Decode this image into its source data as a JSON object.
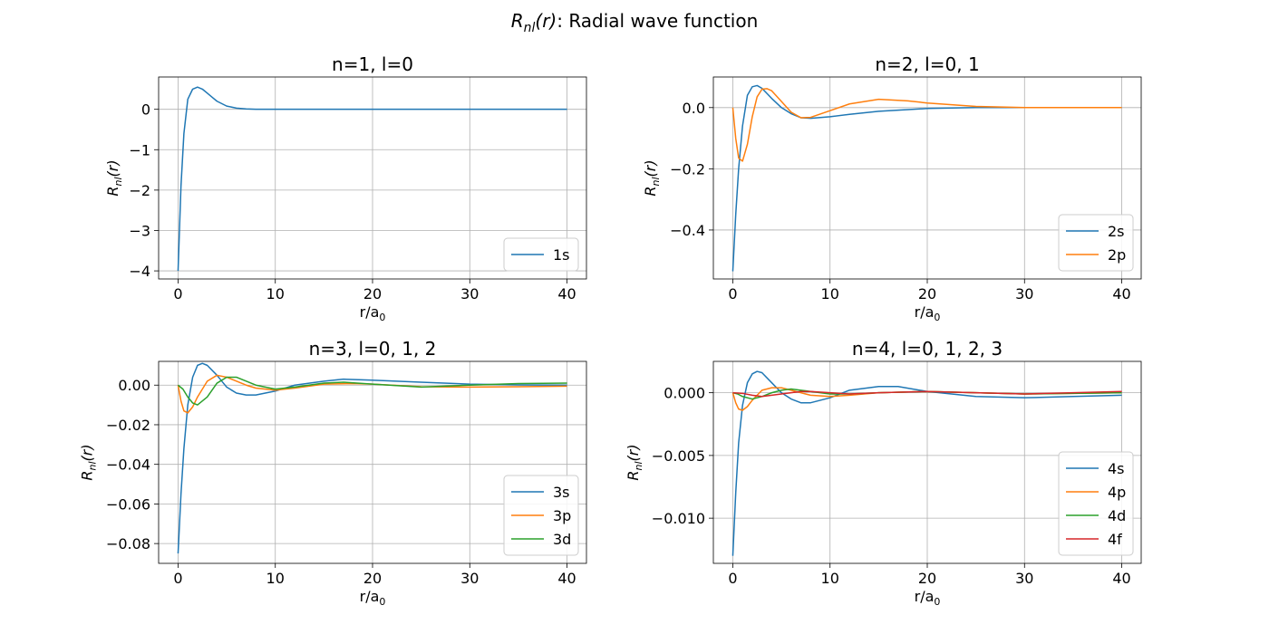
{
  "figure": {
    "suptitle_symbol": "R",
    "suptitle_sub": "nl",
    "suptitle_arg": "(r)",
    "suptitle_text": ": Radial wave function"
  },
  "colors": {
    "s": "#1f77b4",
    "p": "#ff7f0e",
    "d": "#2ca02c",
    "f": "#d62728",
    "grid": "#b0b0b0"
  },
  "chart_data": [
    {
      "type": "line",
      "title": "n=1, l=0",
      "xlabel": "r/a0",
      "ylabel": "Rnl(r)",
      "xlim": [
        -2,
        42
      ],
      "ylim": [
        -4.2,
        0.8
      ],
      "xticks": [
        0,
        10,
        20,
        30,
        40
      ],
      "xtick_labels": [
        "0",
        "10",
        "20",
        "30",
        "40"
      ],
      "yticks": [
        0,
        -1,
        -2,
        -3,
        -4
      ],
      "ytick_labels": [
        "0",
        "−1",
        "−2",
        "−3",
        "−4"
      ],
      "grid": true,
      "legend_position": "lower-right",
      "series": [
        {
          "name": "1s",
          "color": "#1f77b4",
          "x": [
            0,
            0.3,
            0.6,
            1,
            1.5,
            2,
            2.5,
            3,
            3.5,
            4,
            5,
            6,
            7,
            8,
            10,
            15,
            20,
            30,
            40
          ],
          "y": [
            -4.0,
            -1.9,
            -0.6,
            0.25,
            0.5,
            0.55,
            0.5,
            0.4,
            0.3,
            0.2,
            0.08,
            0.03,
            0.01,
            0.0,
            0.0,
            0.0,
            0.0,
            0.0,
            0.0
          ]
        }
      ]
    },
    {
      "type": "line",
      "title": "n=2, l=0, 1",
      "xlabel": "r/a0",
      "ylabel": "Rnl(r)",
      "xlim": [
        -2,
        42
      ],
      "ylim": [
        -0.56,
        0.1
      ],
      "xticks": [
        0,
        10,
        20,
        30,
        40
      ],
      "xtick_labels": [
        "0",
        "10",
        "20",
        "30",
        "40"
      ],
      "yticks": [
        0.0,
        -0.2,
        -0.4
      ],
      "ytick_labels": [
        "0.0",
        "−0.2",
        "−0.4"
      ],
      "grid": true,
      "legend_position": "lower-right",
      "series": [
        {
          "name": "2s",
          "color": "#1f77b4",
          "x": [
            0,
            0.3,
            0.6,
            1,
            1.5,
            2,
            2.5,
            3,
            4,
            5,
            6,
            7,
            8,
            10,
            12,
            15,
            20,
            25,
            30,
            40
          ],
          "y": [
            -0.535,
            -0.35,
            -0.2,
            -0.06,
            0.04,
            0.068,
            0.072,
            0.063,
            0.03,
            0.0,
            -0.02,
            -0.033,
            -0.035,
            -0.03,
            -0.022,
            -0.012,
            -0.003,
            0.0,
            0.0,
            0.0
          ]
        },
        {
          "name": "2p",
          "color": "#ff7f0e",
          "x": [
            0,
            0.3,
            0.6,
            1,
            1.5,
            2,
            2.5,
            3,
            3.5,
            4,
            5,
            6,
            7,
            8,
            10,
            12,
            15,
            18,
            20,
            25,
            30,
            40
          ],
          "y": [
            0.0,
            -0.1,
            -0.165,
            -0.175,
            -0.12,
            -0.03,
            0.035,
            0.06,
            0.062,
            0.055,
            0.02,
            -0.015,
            -0.033,
            -0.032,
            -0.01,
            0.012,
            0.027,
            0.022,
            0.015,
            0.004,
            0.0,
            0.0
          ]
        }
      ]
    },
    {
      "type": "line",
      "title": "n=3, l=0, 1, 2",
      "xlabel": "r/a0",
      "ylabel": "Rnl(r)",
      "xlim": [
        -2,
        42
      ],
      "ylim": [
        -0.09,
        0.012
      ],
      "xticks": [
        0,
        10,
        20,
        30,
        40
      ],
      "xtick_labels": [
        "0",
        "10",
        "20",
        "30",
        "40"
      ],
      "yticks": [
        0.0,
        -0.02,
        -0.04,
        -0.06,
        -0.08
      ],
      "ytick_labels": [
        "0.00",
        "−0.02",
        "−0.04",
        "−0.06",
        "−0.08"
      ],
      "grid": true,
      "legend_position": "lower-right",
      "series": [
        {
          "name": "3s",
          "color": "#1f77b4",
          "x": [
            0,
            0.3,
            0.6,
            1,
            1.5,
            2,
            2.5,
            3,
            4,
            5,
            6,
            7,
            8,
            10,
            12,
            15,
            17,
            20,
            25,
            30,
            35,
            40
          ],
          "y": [
            -0.085,
            -0.055,
            -0.032,
            -0.01,
            0.004,
            0.01,
            0.011,
            0.01,
            0.005,
            -0.001,
            -0.004,
            -0.005,
            -0.005,
            -0.003,
            0.0,
            0.002,
            0.003,
            0.0025,
            0.0015,
            0.0005,
            0.0001,
            0.0
          ]
        },
        {
          "name": "3p",
          "color": "#ff7f0e",
          "x": [
            0,
            0.3,
            0.6,
            1,
            1.5,
            2,
            3,
            4,
            5,
            6,
            7,
            8,
            10,
            12,
            15,
            18,
            20,
            25,
            30,
            35,
            40
          ],
          "y": [
            0.0,
            -0.008,
            -0.013,
            -0.014,
            -0.011,
            -0.006,
            0.002,
            0.005,
            0.004,
            0.002,
            0.0,
            -0.0015,
            -0.0025,
            -0.0015,
            0.0005,
            0.0008,
            0.0005,
            -0.0008,
            -0.001,
            -0.0008,
            -0.0005
          ]
        },
        {
          "name": "3d",
          "color": "#2ca02c",
          "x": [
            0,
            0.5,
            1,
            1.5,
            2,
            3,
            4,
            5,
            6,
            7,
            8,
            10,
            12,
            15,
            17,
            20,
            25,
            30,
            35,
            40
          ],
          "y": [
            0.0,
            -0.002,
            -0.006,
            -0.009,
            -0.01,
            -0.006,
            0.001,
            0.004,
            0.004,
            0.002,
            0.0,
            -0.002,
            -0.001,
            0.001,
            0.0015,
            0.0005,
            -0.001,
            0.0,
            0.0008,
            0.001
          ]
        }
      ]
    },
    {
      "type": "line",
      "title": "n=4, l=0, 1, 2, 3",
      "xlabel": "r/a0",
      "ylabel": "Rnl(r)",
      "xlim": [
        -2,
        42
      ],
      "ylim": [
        -0.0136,
        0.0025
      ],
      "xticks": [
        0,
        10,
        20,
        30,
        40
      ],
      "xtick_labels": [
        "0",
        "10",
        "20",
        "30",
        "40"
      ],
      "yticks": [
        0.0,
        -0.005,
        -0.01
      ],
      "ytick_labels": [
        "0.000",
        "−0.005",
        "−0.010"
      ],
      "grid": true,
      "legend_position": "lower-right",
      "series": [
        {
          "name": "4s",
          "color": "#1f77b4",
          "x": [
            0,
            0.3,
            0.6,
            1,
            1.5,
            2,
            2.5,
            3,
            4,
            5,
            6,
            7,
            8,
            10,
            12,
            15,
            17,
            20,
            25,
            30,
            35,
            40
          ],
          "y": [
            -0.013,
            -0.008,
            -0.004,
            -0.001,
            0.0008,
            0.0015,
            0.0017,
            0.0016,
            0.0008,
            0.0,
            -0.0005,
            -0.0008,
            -0.0008,
            -0.0004,
            0.0002,
            0.0005,
            0.0005,
            0.0001,
            -0.0003,
            -0.0004,
            -0.0003,
            -0.0002
          ]
        },
        {
          "name": "4p",
          "color": "#ff7f0e",
          "x": [
            0,
            0.3,
            0.6,
            1,
            1.5,
            2,
            3,
            4,
            5,
            6,
            7,
            8,
            10,
            12,
            15,
            20,
            25,
            30,
            40
          ],
          "y": [
            0.0,
            -0.0008,
            -0.0013,
            -0.0014,
            -0.0011,
            -0.0006,
            0.0002,
            0.0004,
            0.0004,
            0.0002,
            0.0,
            -0.0002,
            -0.0003,
            -0.0002,
            0.0,
            0.0001,
            0.0,
            -0.0001,
            0.0
          ]
        },
        {
          "name": "4d",
          "color": "#2ca02c",
          "x": [
            0,
            0.5,
            1,
            2,
            3,
            4,
            5,
            6,
            7,
            8,
            10,
            12,
            15,
            20,
            25,
            30,
            40
          ],
          "y": [
            0.0,
            -0.0001,
            -0.0003,
            -0.0005,
            -0.0003,
            0.0,
            0.0002,
            0.0003,
            0.0002,
            0.0001,
            -0.0001,
            -0.0001,
            0.0,
            0.0001,
            0.0,
            -0.0001,
            0.0
          ]
        },
        {
          "name": "4f",
          "color": "#d62728",
          "x": [
            0,
            1,
            2,
            3,
            4,
            5,
            6,
            7,
            8,
            10,
            12,
            15,
            20,
            25,
            30,
            35,
            40
          ],
          "y": [
            0.0,
            -5e-05,
            -0.0002,
            -0.0003,
            -0.0002,
            -0.0001,
            0.0,
            0.0001,
            0.0001,
            0.0,
            -0.0001,
            0.0,
            0.0001,
            0.0,
            -0.0001,
            0.0,
            0.0001
          ]
        }
      ]
    }
  ]
}
